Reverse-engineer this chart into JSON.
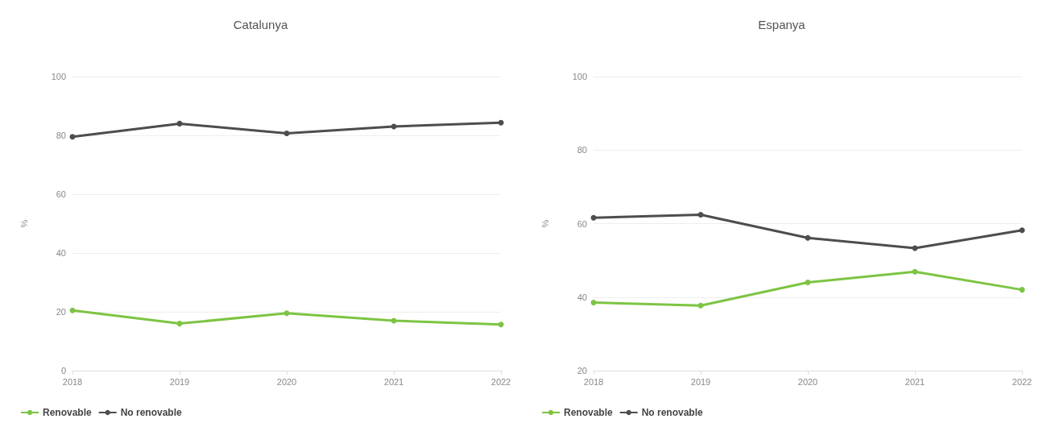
{
  "chart_data": [
    {
      "type": "line",
      "title": "Catalunya",
      "ylabel": "%",
      "categories": [
        "2018",
        "2019",
        "2020",
        "2021",
        "2022"
      ],
      "series": [
        {
          "name": "Renovable",
          "color": "#7dc443",
          "values": [
            20.5,
            16,
            19.5,
            17,
            15.7
          ]
        },
        {
          "name": "No renovable",
          "color": "#4d4d4d",
          "values": [
            79.5,
            84,
            80.7,
            83,
            84.3
          ]
        }
      ],
      "ylim": [
        0,
        100
      ],
      "yticks": [
        0,
        20,
        40,
        60,
        80,
        100
      ],
      "grid": "y",
      "legend": "bottom left",
      "marker": "circle"
    },
    {
      "type": "line",
      "title": "Espanya",
      "ylabel": "%",
      "categories": [
        "2018",
        "2019",
        "2020",
        "2021",
        "2022"
      ],
      "series": [
        {
          "name": "Renovable",
          "color": "#7dc443",
          "values": [
            38.5,
            37.7,
            44.0,
            46.9,
            42.0
          ]
        },
        {
          "name": "No renovable",
          "color": "#4d4d4d",
          "values": [
            61.6,
            62.4,
            56.1,
            53.3,
            58.2
          ]
        }
      ],
      "ylim": [
        20,
        100
      ],
      "yticks": [
        20,
        40,
        60,
        80,
        100
      ],
      "grid": "y",
      "legend": "bottom left",
      "marker": "circle"
    }
  ]
}
